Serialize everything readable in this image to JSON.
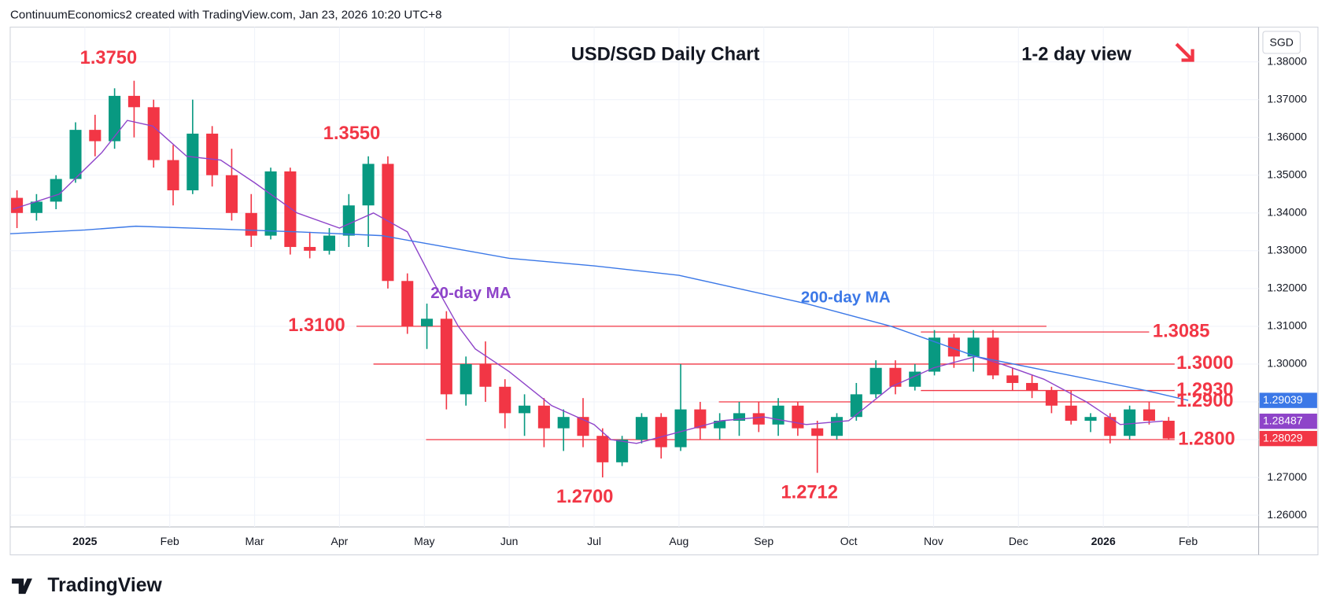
{
  "header": "ContinuumEconomics2 created with TradingView.com, Jan 23, 2026 10:20 UTC+8",
  "logo": "TradingView",
  "chart_data": {
    "type": "candlestick",
    "title": "USD/SGD Daily Chart",
    "subtitle": "1-2 day view",
    "currency": "SGD",
    "up_color": "#089981",
    "down_color": "#f23645",
    "grid": true,
    "xlim": [
      -0.88,
      13.83
    ],
    "ylim": [
      1.2569,
      1.3892
    ],
    "xticks": [
      {
        "value": 0,
        "label": "2025"
      },
      {
        "value": 1,
        "label": "Feb"
      },
      {
        "value": 2,
        "label": "Mar"
      },
      {
        "value": 3,
        "label": "Apr"
      },
      {
        "value": 4,
        "label": "May"
      },
      {
        "value": 5,
        "label": "Jun"
      },
      {
        "value": 6,
        "label": "Jul"
      },
      {
        "value": 7,
        "label": "Aug"
      },
      {
        "value": 8,
        "label": "Sep"
      },
      {
        "value": 9,
        "label": "Oct"
      },
      {
        "value": 10,
        "label": "Nov"
      },
      {
        "value": 11,
        "label": "Dec"
      },
      {
        "value": 12,
        "label": "2026"
      },
      {
        "value": 13,
        "label": "Feb"
      }
    ],
    "yticks": [
      {
        "value": 1.26,
        "label": "1.26000"
      },
      {
        "value": 1.27,
        "label": "1.27000"
      },
      {
        "value": 1.28,
        "label": "1.28000"
      },
      {
        "value": 1.29,
        "label": "1.29000"
      },
      {
        "value": 1.3,
        "label": "1.30000"
      },
      {
        "value": 1.31,
        "label": "1.31000"
      },
      {
        "value": 1.32,
        "label": "1.32000"
      },
      {
        "value": 1.33,
        "label": "1.33000"
      },
      {
        "value": 1.34,
        "label": "1.34000"
      },
      {
        "value": 1.35,
        "label": "1.35000"
      },
      {
        "value": 1.36,
        "label": "1.36000"
      },
      {
        "value": 1.37,
        "label": "1.37000"
      },
      {
        "value": 1.38,
        "label": "1.38000"
      }
    ],
    "x": [
      -0.8,
      -0.57,
      -0.34,
      -0.11,
      0.12,
      0.35,
      0.58,
      0.81,
      1.04,
      1.27,
      1.5,
      1.73,
      1.96,
      2.19,
      2.42,
      2.65,
      2.88,
      3.11,
      3.34,
      3.57,
      3.8,
      4.03,
      4.26,
      4.49,
      4.72,
      4.95,
      5.18,
      5.41,
      5.64,
      5.87,
      6.1,
      6.33,
      6.56,
      6.79,
      7.02,
      7.25,
      7.48,
      7.71,
      7.94,
      8.17,
      8.4,
      8.63,
      8.86,
      9.09,
      9.32,
      9.55,
      9.78,
      10.01,
      10.24,
      10.47,
      10.7,
      10.93,
      11.16,
      11.39,
      11.62,
      11.85,
      12.08,
      12.31,
      12.54,
      12.77
    ],
    "open": [
      1.344,
      1.34,
      1.343,
      1.349,
      1.362,
      1.359,
      1.371,
      1.368,
      1.354,
      1.346,
      1.361,
      1.35,
      1.34,
      1.334,
      1.351,
      1.331,
      1.33,
      1.334,
      1.342,
      1.353,
      1.322,
      1.31,
      1.312,
      1.292,
      1.3,
      1.294,
      1.287,
      1.289,
      1.283,
      1.286,
      1.281,
      1.274,
      1.28,
      1.286,
      1.278,
      1.288,
      1.283,
      1.285,
      1.287,
      1.284,
      1.289,
      1.283,
      1.281,
      1.286,
      1.292,
      1.299,
      1.294,
      1.298,
      1.307,
      1.302,
      1.307,
      1.297,
      1.295,
      1.293,
      1.289,
      1.285,
      1.286,
      1.281,
      1.288,
      1.285
    ],
    "high": [
      1.346,
      1.345,
      1.35,
      1.364,
      1.366,
      1.373,
      1.375,
      1.37,
      1.358,
      1.37,
      1.363,
      1.357,
      1.345,
      1.352,
      1.352,
      1.335,
      1.336,
      1.345,
      1.355,
      1.355,
      1.324,
      1.316,
      1.314,
      1.302,
      1.306,
      1.296,
      1.292,
      1.291,
      1.288,
      1.291,
      1.283,
      1.281,
      1.287,
      1.287,
      1.3,
      1.29,
      1.287,
      1.29,
      1.29,
      1.291,
      1.29,
      1.285,
      1.287,
      1.295,
      1.301,
      1.301,
      1.3,
      1.309,
      1.308,
      1.309,
      1.309,
      1.299,
      1.297,
      1.294,
      1.293,
      1.287,
      1.287,
      1.289,
      1.29,
      1.286
    ],
    "low": [
      1.336,
      1.338,
      1.341,
      1.348,
      1.355,
      1.357,
      1.36,
      1.352,
      1.342,
      1.345,
      1.347,
      1.338,
      1.331,
      1.333,
      1.329,
      1.328,
      1.329,
      1.331,
      1.331,
      1.32,
      1.308,
      1.304,
      1.288,
      1.289,
      1.29,
      1.283,
      1.281,
      1.278,
      1.277,
      1.278,
      1.27,
      1.273,
      1.279,
      1.275,
      1.277,
      1.28,
      1.28,
      1.281,
      1.282,
      1.281,
      1.281,
      1.2712,
      1.28,
      1.285,
      1.291,
      1.292,
      1.293,
      1.297,
      1.299,
      1.298,
      1.296,
      1.293,
      1.291,
      1.287,
      1.284,
      1.282,
      1.279,
      1.28,
      1.284,
      1.28
    ],
    "close": [
      1.34,
      1.343,
      1.349,
      1.362,
      1.359,
      1.371,
      1.368,
      1.354,
      1.346,
      1.361,
      1.35,
      1.34,
      1.334,
      1.351,
      1.331,
      1.33,
      1.334,
      1.342,
      1.353,
      1.322,
      1.31,
      1.312,
      1.292,
      1.3,
      1.294,
      1.287,
      1.289,
      1.283,
      1.286,
      1.281,
      1.274,
      1.28,
      1.286,
      1.278,
      1.288,
      1.283,
      1.285,
      1.287,
      1.284,
      1.289,
      1.283,
      1.281,
      1.286,
      1.292,
      1.299,
      1.294,
      1.298,
      1.307,
      1.302,
      1.307,
      1.297,
      1.295,
      1.293,
      1.289,
      1.285,
      1.286,
      1.281,
      1.288,
      1.285,
      1.2803
    ],
    "series": [
      {
        "name": "20-day MA",
        "color": "#8e44c9",
        "x": [
          -0.85,
          -0.3,
          0.2,
          0.5,
          0.8,
          1.2,
          1.6,
          2,
          2.5,
          3,
          3.4,
          3.8,
          4.1,
          4.4,
          4.6,
          5,
          5.5,
          6,
          6.2,
          6.5,
          7,
          7.5,
          8,
          8.5,
          9,
          9.5,
          10,
          10.5,
          10.8,
          11.3,
          11.8,
          12.2,
          12.7
        ],
        "values": [
          1.341,
          1.345,
          1.356,
          1.3645,
          1.363,
          1.355,
          1.354,
          1.348,
          1.34,
          1.336,
          1.34,
          1.335,
          1.322,
          1.31,
          1.304,
          1.298,
          1.289,
          1.284,
          1.28,
          1.279,
          1.282,
          1.285,
          1.286,
          1.284,
          1.285,
          1.294,
          1.299,
          1.302,
          1.3,
          1.296,
          1.29,
          1.284,
          1.2849
        ]
      },
      {
        "name": "200-day MA",
        "color": "#3b78e7",
        "x": [
          -0.88,
          0,
          0.6,
          1.5,
          2.5,
          3.5,
          4,
          5,
          6,
          7,
          7.5,
          8.5,
          9.5,
          10.5,
          11.5,
          12.5,
          13
        ],
        "values": [
          1.3345,
          1.3355,
          1.3365,
          1.3358,
          1.335,
          1.334,
          1.332,
          1.328,
          1.326,
          1.3235,
          1.321,
          1.316,
          1.31,
          1.302,
          1.2975,
          1.293,
          1.2904
        ]
      }
    ],
    "levels": [
      {
        "value": 1.31,
        "label": "1.3100",
        "x": [
          3.2,
          11.33
        ]
      },
      {
        "value": 1.3085,
        "label": "1.3085",
        "x": [
          9.85,
          12.54
        ]
      },
      {
        "value": 1.3,
        "label": "1.3000",
        "x": [
          3.4,
          12.84
        ]
      },
      {
        "value": 1.293,
        "label": "1.2930",
        "x": [
          9.85,
          12.84
        ]
      },
      {
        "value": 1.29,
        "label": "1.2900",
        "x": [
          7.47,
          12.84
        ]
      },
      {
        "value": 1.28,
        "label": "1.2800",
        "x": [
          4.02,
          12.84
        ]
      }
    ],
    "extremes": [
      {
        "value": 1.375,
        "label": "1.3750"
      },
      {
        "value": 1.355,
        "label": "1.3550"
      },
      {
        "value": 1.27,
        "label": "1.2700"
      },
      {
        "value": 1.2712,
        "label": "1.2712"
      }
    ],
    "price_tags": [
      {
        "value": 1.29039,
        "color": "#3b78e7"
      },
      {
        "value": 1.28487,
        "color": "#8e44c9"
      },
      {
        "value": 1.28029,
        "color": "#f23645"
      }
    ]
  }
}
